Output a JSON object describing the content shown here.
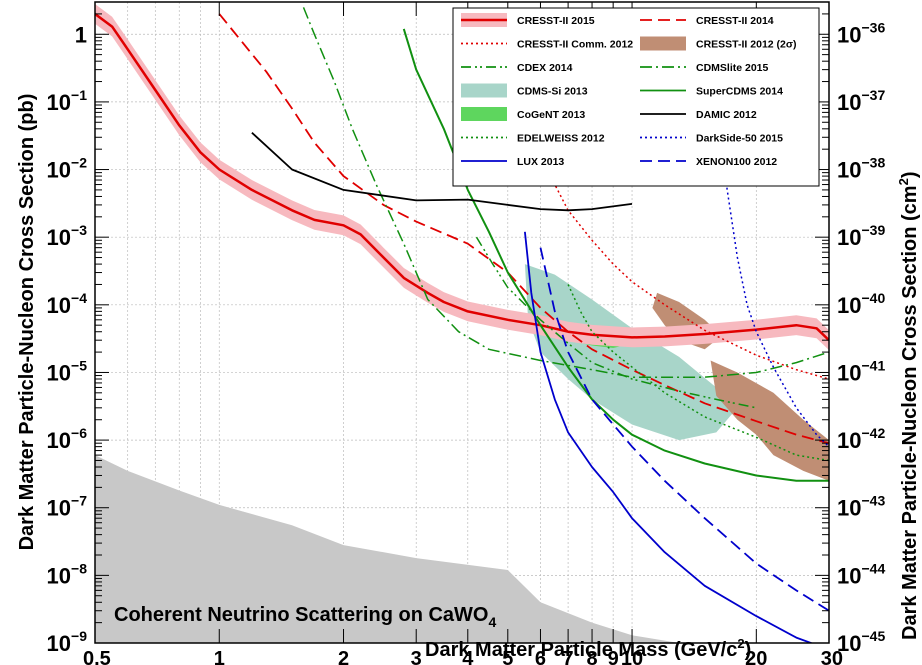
{
  "chart_data": {
    "type": "line",
    "xlabel": "Dark Matter Particle Mass (GeV/c",
    "xlabel_sup": "2",
    "xlabel_end": ")",
    "ylabel_left": "Dark Matter Particle-Nucleon Cross Section (pb)",
    "ylabel_right_main": "Dark Matter Particle-Nucleon Cross Section (cm",
    "ylabel_right_sup": "2",
    "ylabel_right_end": ")",
    "x_scale": "log",
    "y_scale": "log",
    "xlim": [
      0.5,
      30
    ],
    "ylim_pb": [
      1e-09,
      3
    ],
    "right_axis_offset_decades": -36,
    "grid": true,
    "legend_position": "top-right",
    "x_ticks": [
      {
        "value": 0.5,
        "label": "0.5"
      },
      {
        "value": 1,
        "label": "1"
      },
      {
        "value": 2,
        "label": "2"
      },
      {
        "value": 3,
        "label": "3"
      },
      {
        "value": 4,
        "label": "4"
      },
      {
        "value": 5,
        "label": "5"
      },
      {
        "value": 6,
        "label": "6"
      },
      {
        "value": 7,
        "label": "7"
      },
      {
        "value": 8,
        "label": "8"
      },
      {
        "value": 9,
        "label": "9"
      },
      {
        "value": 10,
        "label": "10"
      },
      {
        "value": 20,
        "label": "20"
      },
      {
        "value": 30,
        "label": "30"
      }
    ],
    "y_ticks_left": [
      {
        "exp": 0,
        "label": "1"
      },
      {
        "exp": -1,
        "label": "10",
        "sup": "−1"
      },
      {
        "exp": -2,
        "label": "10",
        "sup": "−2"
      },
      {
        "exp": -3,
        "label": "10",
        "sup": "−3"
      },
      {
        "exp": -4,
        "label": "10",
        "sup": "−4"
      },
      {
        "exp": -5,
        "label": "10",
        "sup": "−5"
      },
      {
        "exp": -6,
        "label": "10",
        "sup": "−6"
      },
      {
        "exp": -7,
        "label": "10",
        "sup": "−7"
      },
      {
        "exp": -8,
        "label": "10",
        "sup": "−8"
      },
      {
        "exp": -9,
        "label": "10",
        "sup": "−9"
      }
    ],
    "y_ticks_right": [
      {
        "exp": 0,
        "label": "10",
        "sup": "−36"
      },
      {
        "exp": -1,
        "label": "10",
        "sup": "−37"
      },
      {
        "exp": -2,
        "label": "10",
        "sup": "−38"
      },
      {
        "exp": -3,
        "label": "10",
        "sup": "−39"
      },
      {
        "exp": -4,
        "label": "10",
        "sup": "−40"
      },
      {
        "exp": -5,
        "label": "10",
        "sup": "−41"
      },
      {
        "exp": -6,
        "label": "10",
        "sup": "−42"
      },
      {
        "exp": -7,
        "label": "10",
        "sup": "−43"
      },
      {
        "exp": -8,
        "label": "10",
        "sup": "−44"
      },
      {
        "exp": -9,
        "label": "10",
        "sup": "−45"
      }
    ],
    "annotation": {
      "text": "Coherent Neutrino Scattering on CaWO",
      "sub": "4"
    },
    "neutrino_floor": {
      "color": "#c8c8c8",
      "points": [
        [
          0.5,
          6e-07
        ],
        [
          0.6,
          3.5e-07
        ],
        [
          0.8,
          1.8e-07
        ],
        [
          1,
          1.1e-07
        ],
        [
          1.5,
          5.5e-08
        ],
        [
          2,
          2.8e-08
        ],
        [
          3,
          1.8e-08
        ],
        [
          5,
          1.2e-08
        ],
        [
          6,
          4e-09
        ],
        [
          8,
          2e-09
        ],
        [
          10,
          1.3e-09
        ],
        [
          13,
          1e-09
        ]
      ]
    },
    "series": [
      {
        "name": "CRESST-II 2015",
        "color": "#e00000",
        "style": "solid",
        "width": 2.5,
        "band": {
          "color": "#f7b9bf",
          "factor": 1.4
        },
        "points": [
          [
            0.5,
            2
          ],
          [
            0.55,
            1.3
          ],
          [
            0.6,
            0.6
          ],
          [
            0.7,
            0.15
          ],
          [
            0.8,
            0.045
          ],
          [
            0.9,
            0.018
          ],
          [
            1,
            0.01
          ],
          [
            1.2,
            0.005
          ],
          [
            1.5,
            0.0025
          ],
          [
            1.7,
            0.0018
          ],
          [
            2,
            0.0015
          ],
          [
            2.2,
            0.0011
          ],
          [
            2.5,
            0.0005
          ],
          [
            2.8,
            0.00025
          ],
          [
            3.2,
            0.00015
          ],
          [
            3.5,
            0.00011
          ],
          [
            4,
            8e-05
          ],
          [
            5,
            6e-05
          ],
          [
            6,
            5e-05
          ],
          [
            7,
            4e-05
          ],
          [
            8,
            3.6e-05
          ],
          [
            10,
            3.3e-05
          ],
          [
            12,
            3.4e-05
          ],
          [
            15,
            3.7e-05
          ],
          [
            20,
            4.3e-05
          ],
          [
            25,
            5e-05
          ],
          [
            28,
            4.5e-05
          ],
          [
            30,
            3e-05
          ]
        ]
      },
      {
        "name": "CRESST-II 2014",
        "color": "#e00000",
        "style": "dashed",
        "width": 1.8,
        "points": [
          [
            1,
            2
          ],
          [
            1.15,
            0.7
          ],
          [
            1.3,
            0.28
          ],
          [
            1.5,
            0.08
          ],
          [
            1.7,
            0.025
          ],
          [
            2,
            0.008
          ],
          [
            2.5,
            0.003
          ],
          [
            3,
            0.0017
          ],
          [
            4,
            0.0008
          ],
          [
            5,
            0.0003
          ],
          [
            6,
            9e-05
          ],
          [
            7,
            4e-05
          ],
          [
            8,
            2.2e-05
          ],
          [
            10,
            1.1e-05
          ],
          [
            12,
            6.5e-06
          ],
          [
            15,
            3.5e-06
          ],
          [
            20,
            1.9e-06
          ],
          [
            25,
            1.2e-06
          ],
          [
            30,
            9e-07
          ]
        ]
      },
      {
        "name": "CRESST-II Comm. 2012",
        "color": "#e00000",
        "style": "dotted",
        "width": 1.5,
        "points": [
          [
            6,
            0.02
          ],
          [
            6.5,
            0.006
          ],
          [
            7,
            0.0025
          ],
          [
            8,
            0.0009
          ],
          [
            9,
            0.0004
          ],
          [
            10,
            0.00022
          ],
          [
            12,
            0.0001
          ],
          [
            15,
            4.2e-05
          ],
          [
            20,
            1.8e-05
          ],
          [
            25,
            1.1e-05
          ],
          [
            30,
            8e-06
          ]
        ]
      },
      {
        "name": "CDEX 2014",
        "color": "#119011",
        "style": "dashdotdot",
        "width": 1.5,
        "points": [
          [
            4.2,
            0.001
          ],
          [
            4.6,
            0.0004
          ],
          [
            5,
            0.00018
          ],
          [
            6,
            6e-05
          ],
          [
            7,
            2.7e-05
          ],
          [
            8,
            1.4e-05
          ],
          [
            10,
            8e-06
          ],
          [
            13,
            5.3e-06
          ],
          [
            16,
            4e-06
          ],
          [
            20,
            3e-06
          ]
        ]
      },
      {
        "name": "CDMSlite 2015",
        "color": "#119011",
        "style": "dashdot",
        "width": 1.5,
        "points": [
          [
            1.6,
            2.5
          ],
          [
            1.7,
            1
          ],
          [
            1.9,
            0.2
          ],
          [
            2.1,
            0.04
          ],
          [
            2.4,
            0.006
          ],
          [
            2.8,
            0.0008
          ],
          [
            3.2,
            0.00012
          ],
          [
            3.8,
            4e-05
          ],
          [
            4.5,
            2.2e-05
          ],
          [
            6,
            1.5e-05
          ],
          [
            8,
            1.1e-05
          ],
          [
            10,
            8.5e-06
          ],
          [
            15,
            8.5e-06
          ],
          [
            20,
            1e-05
          ],
          [
            25,
            1.4e-05
          ],
          [
            30,
            2e-05
          ]
        ]
      },
      {
        "name": "SuperCDMS 2014",
        "color": "#119011",
        "style": "solid",
        "width": 2,
        "points": [
          [
            2.8,
            1.2
          ],
          [
            3,
            0.3
          ],
          [
            3.5,
            0.04
          ],
          [
            4,
            0.005
          ],
          [
            4.5,
            0.0012
          ],
          [
            5,
            0.0003
          ],
          [
            6,
            5e-05
          ],
          [
            7,
            1.2e-05
          ],
          [
            8,
            4e-06
          ],
          [
            9,
            2e-06
          ],
          [
            10,
            1.2e-06
          ],
          [
            12,
            7e-07
          ],
          [
            15,
            4.5e-07
          ],
          [
            20,
            3e-07
          ],
          [
            25,
            2.5e-07
          ],
          [
            30,
            2.5e-07
          ]
        ]
      },
      {
        "name": "DAMIC 2012",
        "color": "#000000",
        "style": "solid",
        "width": 1.8,
        "points": [
          [
            1.2,
            0.035
          ],
          [
            1.5,
            0.01
          ],
          [
            2,
            0.005
          ],
          [
            3,
            0.0035
          ],
          [
            4,
            0.0036
          ],
          [
            5,
            0.003
          ],
          [
            6,
            0.0026
          ],
          [
            7,
            0.0025
          ],
          [
            8,
            0.0026
          ],
          [
            10,
            0.0031
          ]
        ]
      },
      {
        "name": "DarkSide-50 2015",
        "color": "#0000cc",
        "style": "dotted",
        "width": 1.5,
        "points": [
          [
            15,
            1
          ],
          [
            16,
            0.1
          ],
          [
            17,
            0.005
          ],
          [
            18,
            0.0005
          ],
          [
            19,
            0.0001
          ],
          [
            20,
            4e-05
          ],
          [
            22,
            1.2e-05
          ],
          [
            25,
            3e-06
          ],
          [
            28,
            1.2e-06
          ],
          [
            30,
            8e-07
          ]
        ]
      },
      {
        "name": "LUX 2013",
        "color": "#0000cc",
        "style": "solid",
        "width": 1.8,
        "points": [
          [
            5.5,
            0.0012
          ],
          [
            5.7,
            0.00015
          ],
          [
            6,
            2e-05
          ],
          [
            6.5,
            4e-06
          ],
          [
            7,
            1.3e-06
          ],
          [
            8,
            4e-07
          ],
          [
            9,
            1.7e-07
          ],
          [
            10,
            7e-08
          ],
          [
            12,
            2.2e-08
          ],
          [
            15,
            7e-09
          ],
          [
            20,
            2.5e-09
          ],
          [
            25,
            1.2e-09
          ],
          [
            30,
            8e-10
          ]
        ]
      },
      {
        "name": "XENON100 2012",
        "color": "#0000cc",
        "style": "dashed",
        "width": 1.8,
        "points": [
          [
            6,
            0.0007
          ],
          [
            6.5,
            8e-05
          ],
          [
            7,
            2e-05
          ],
          [
            8,
            4e-06
          ],
          [
            9,
            1.7e-06
          ],
          [
            10,
            8e-07
          ],
          [
            12,
            2.5e-07
          ],
          [
            15,
            7e-08
          ],
          [
            20,
            1.5e-08
          ],
          [
            25,
            6e-09
          ],
          [
            30,
            3e-09
          ]
        ]
      },
      {
        "name": "EDELWEISS 2012",
        "color": "#119011",
        "style": "dotted",
        "width": 1.5,
        "points": [
          [
            7,
            0.0002
          ],
          [
            7.5,
            8e-05
          ],
          [
            8,
            4e-05
          ],
          [
            9,
            2e-05
          ],
          [
            10,
            1.2e-05
          ],
          [
            12,
            5e-06
          ],
          [
            15,
            2.2e-06
          ],
          [
            20,
            1.1e-06
          ],
          [
            25,
            6e-07
          ],
          [
            30,
            5e-07
          ]
        ]
      }
    ],
    "regions": [
      {
        "name": "CDMS-Si 2013",
        "color": "#a8d5c9",
        "points": [
          [
            5.5,
            0.0004
          ],
          [
            6.5,
            0.00028
          ],
          [
            8,
            0.00012
          ],
          [
            10,
            4.5e-05
          ],
          [
            13,
            1.7e-05
          ],
          [
            16,
            6e-06
          ],
          [
            18,
            3e-06
          ],
          [
            16,
            1.3e-06
          ],
          [
            13,
            1e-06
          ],
          [
            10,
            1.7e-06
          ],
          [
            8,
            4e-06
          ],
          [
            7,
            8e-06
          ],
          [
            6,
            2e-05
          ],
          [
            5.6,
            6e-05
          ]
        ]
      },
      {
        "name": "CoGeNT 2013",
        "color": "#5ed65e",
        "points": [
          [
            6.2,
            5.5e-05
          ],
          [
            7,
            4.5e-05
          ],
          [
            8,
            3.5e-05
          ],
          [
            9,
            3e-05
          ],
          [
            9.8,
            2.6e-05
          ],
          [
            9,
            2.3e-05
          ],
          [
            8,
            2.5e-05
          ],
          [
            7,
            3e-05
          ],
          [
            6.2,
            3.6e-05
          ]
        ]
      },
      {
        "name": "CRESST-II 2012 (2σ)",
        "color": "#c08e74",
        "points": [
          [
            11.5,
            0.00015
          ],
          [
            13,
            0.00011
          ],
          [
            15,
            6e-05
          ],
          [
            16.5,
            3.5e-05
          ],
          [
            15,
            2.2e-05
          ],
          [
            13,
            3e-05
          ],
          [
            12,
            5e-05
          ],
          [
            11.2,
            9e-05
          ]
        ]
      },
      {
        "name": "CRESST-II 2012 (2σ) upper",
        "color": "#c08e74",
        "points": [
          [
            15.5,
            1.5e-05
          ],
          [
            18,
            1e-05
          ],
          [
            22,
            5e-06
          ],
          [
            26,
            2e-06
          ],
          [
            30,
            1e-06
          ],
          [
            30,
            2.5e-07
          ],
          [
            26,
            3.5e-07
          ],
          [
            22,
            6e-07
          ],
          [
            20,
            1.2e-06
          ],
          [
            18,
            2e-06
          ],
          [
            16,
            4.5e-06
          ]
        ]
      }
    ],
    "legend": [
      {
        "label": "CRESST-II 2015",
        "kind": "line-band",
        "color": "#e00000",
        "band": "#f7b9bf",
        "style": "solid"
      },
      {
        "label": "CRESST-II 2014",
        "kind": "line",
        "color": "#e00000",
        "style": "dashed"
      },
      {
        "label": "CRESST-II Comm. 2012",
        "kind": "line",
        "color": "#e00000",
        "style": "dotted"
      },
      {
        "label": "CRESST-II 2012 (2σ)",
        "kind": "fill",
        "color": "#c08e74"
      },
      {
        "label": "CDEX 2014",
        "kind": "line",
        "color": "#119011",
        "style": "dashdotdot"
      },
      {
        "label": "CDMSlite 2015",
        "kind": "line",
        "color": "#119011",
        "style": "dashdot"
      },
      {
        "label": "CDMS-Si 2013",
        "kind": "fill",
        "color": "#a8d5c9"
      },
      {
        "label": "SuperCDMS 2014",
        "kind": "line",
        "color": "#119011",
        "style": "solid"
      },
      {
        "label": "CoGeNT 2013",
        "kind": "fill",
        "color": "#5ed65e"
      },
      {
        "label": "DAMIC 2012",
        "kind": "line",
        "color": "#000000",
        "style": "solid"
      },
      {
        "label": "EDELWEISS 2012",
        "kind": "line",
        "color": "#119011",
        "style": "dotted"
      },
      {
        "label": "DarkSide-50 2015",
        "kind": "line",
        "color": "#0000cc",
        "style": "dotted"
      },
      {
        "label": "LUX 2013",
        "kind": "line",
        "color": "#0000cc",
        "style": "solid"
      },
      {
        "label": "XENON100 2012",
        "kind": "line",
        "color": "#0000cc",
        "style": "dashed"
      }
    ]
  }
}
